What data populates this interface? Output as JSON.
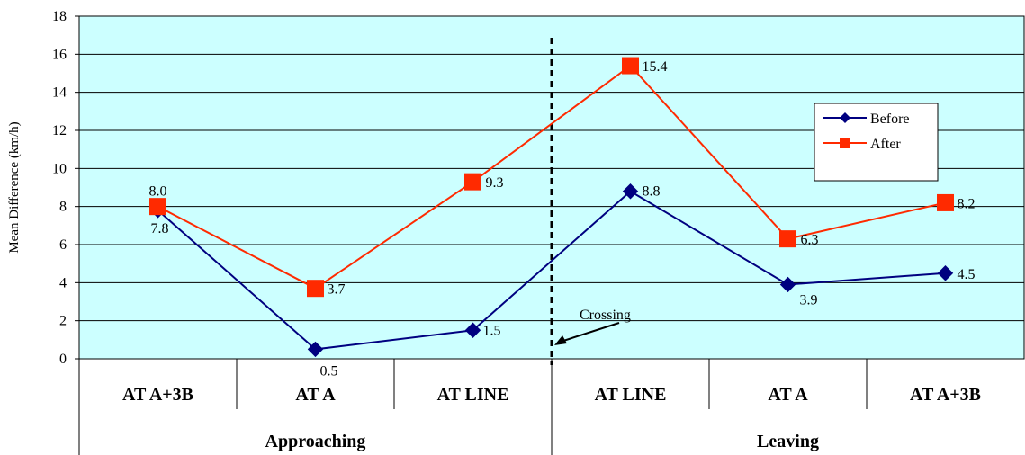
{
  "chart_data": {
    "type": "line",
    "title": "",
    "ylabel": "Mean Difference (km/h)",
    "xlabel": "",
    "ylim": [
      0,
      18
    ],
    "yticks": [
      0,
      2,
      4,
      6,
      8,
      10,
      12,
      14,
      16,
      18
    ],
    "grid": true,
    "legend_position": "top-right",
    "categories": [
      "AT A+3B",
      "AT A",
      "AT LINE",
      "AT LINE",
      "AT A",
      "AT A+3B"
    ],
    "groups": [
      {
        "label": "Approaching",
        "span": [
          0,
          2
        ]
      },
      {
        "label": "Leaving",
        "span": [
          3,
          5
        ]
      }
    ],
    "series": [
      {
        "name": "Before",
        "color": "#000080",
        "marker": "diamond",
        "values": [
          7.8,
          0.5,
          1.5,
          8.8,
          3.9,
          4.5
        ]
      },
      {
        "name": "After",
        "color": "#ff2a00",
        "marker": "square",
        "values": [
          8.0,
          3.7,
          9.3,
          15.4,
          6.3,
          8.2
        ]
      }
    ],
    "annotation": {
      "text": "Crossing"
    },
    "colors": {
      "plot_background": "#ccffff",
      "gridline": "#000000",
      "divider": "#000000"
    }
  }
}
